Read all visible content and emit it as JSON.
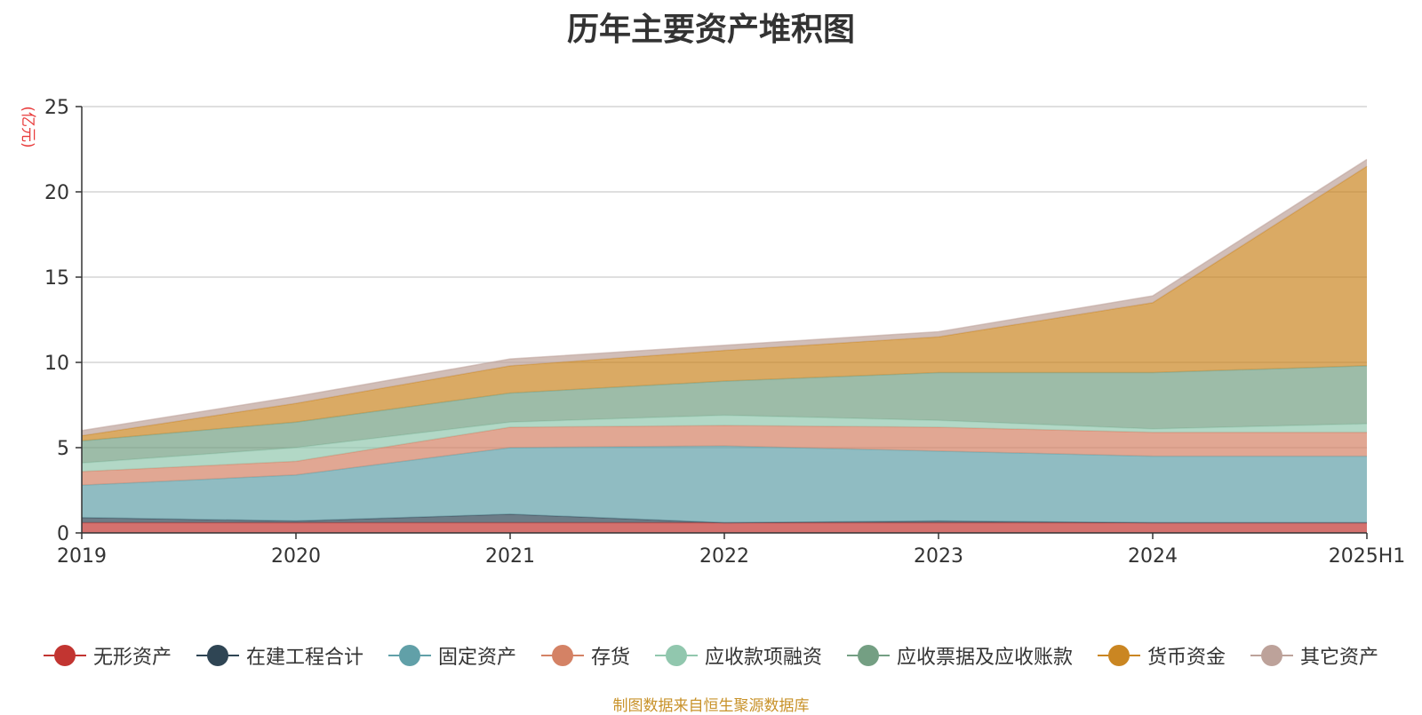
{
  "chart_data": {
    "type": "area",
    "stacked": true,
    "title": "历年主要资产堆积图",
    "ylabel": "(亿元)",
    "xlabel": "",
    "categories": [
      "2019",
      "2020",
      "2021",
      "2022",
      "2023",
      "2024",
      "2025H1"
    ],
    "ylim": [
      0,
      25
    ],
    "yticks": [
      0,
      5,
      10,
      15,
      20,
      25
    ],
    "grid": true,
    "legend_position": "bottom",
    "series": [
      {
        "name": "无形资产",
        "color": "#c23531",
        "values": [
          0.6,
          0.6,
          0.6,
          0.6,
          0.6,
          0.6,
          0.6
        ]
      },
      {
        "name": "在建工程合计",
        "color": "#2f4554",
        "values": [
          0.3,
          0.1,
          0.5,
          0.0,
          0.1,
          0.0,
          0.0
        ]
      },
      {
        "name": "固定资产",
        "color": "#61a0a8",
        "values": [
          1.9,
          2.7,
          3.9,
          4.5,
          4.1,
          3.9,
          3.9
        ]
      },
      {
        "name": "存货",
        "color": "#d48265",
        "values": [
          0.8,
          0.8,
          1.2,
          1.2,
          1.4,
          1.4,
          1.4
        ]
      },
      {
        "name": "应收款项融资",
        "color": "#91c7ae",
        "values": [
          0.5,
          0.8,
          0.3,
          0.6,
          0.4,
          0.2,
          0.5
        ]
      },
      {
        "name": "应收票据及应收账款",
        "color": "#749f83",
        "values": [
          1.3,
          1.5,
          1.7,
          2.0,
          2.8,
          3.3,
          3.4
        ]
      },
      {
        "name": "货币资金",
        "color": "#ca8622",
        "values": [
          0.3,
          1.1,
          1.6,
          1.8,
          2.1,
          4.1,
          11.7
        ]
      },
      {
        "name": "其它资产",
        "color": "#bda29a",
        "values": [
          0.3,
          0.4,
          0.4,
          0.3,
          0.3,
          0.4,
          0.4
        ]
      }
    ]
  },
  "source_note": "制图数据来自恒生聚源数据库"
}
